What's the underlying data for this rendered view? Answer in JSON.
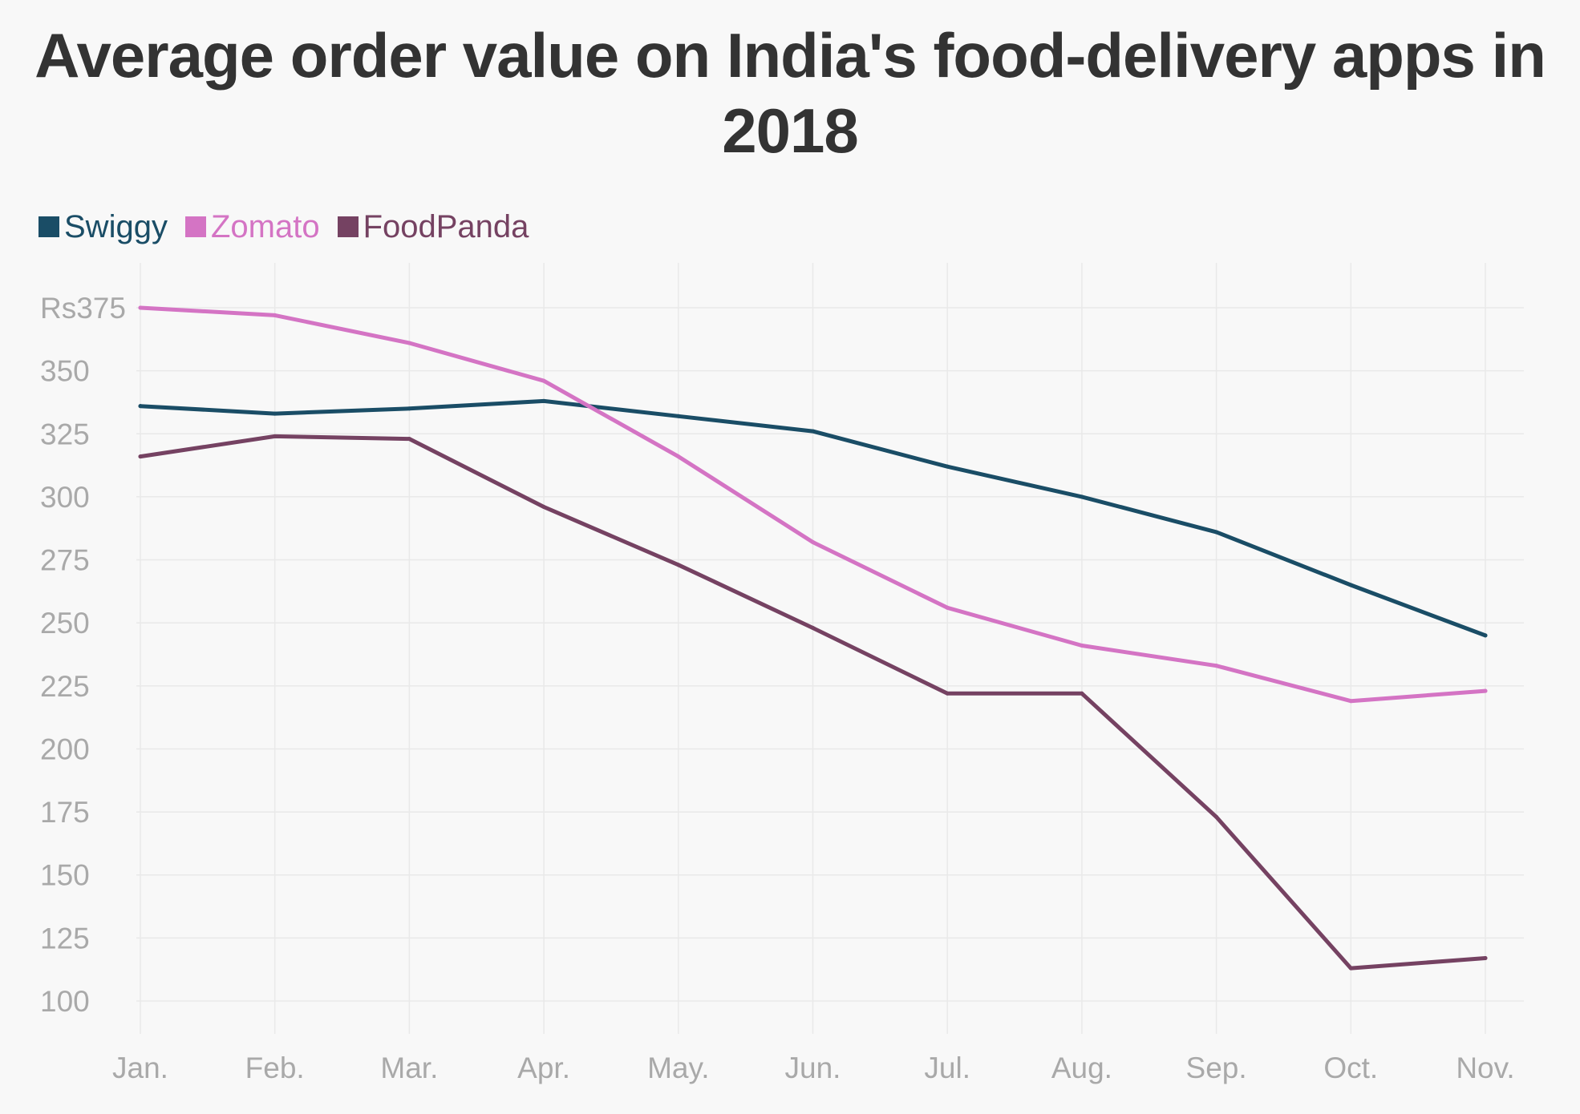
{
  "chart_data": {
    "type": "line",
    "title": "Average order value on India's food-delivery apps in 2018",
    "xlabel": "",
    "ylabel": "",
    "categories": [
      "Jan.",
      "Feb.",
      "Mar.",
      "Apr.",
      "May.",
      "Jun.",
      "Jul.",
      "Aug.",
      "Sep.",
      "Oct.",
      "Nov."
    ],
    "y_ticks": [
      "100",
      "125",
      "150",
      "175",
      "200",
      "225",
      "250",
      "275",
      "300",
      "325",
      "350",
      "Rs375"
    ],
    "ylim": [
      100,
      375
    ],
    "grid": true,
    "legend_position": "top-left",
    "series": [
      {
        "name": "Swiggy",
        "color": "#1a4d66",
        "values": [
          336,
          333,
          335,
          338,
          332,
          326,
          312,
          300,
          286,
          265,
          245
        ]
      },
      {
        "name": "Zomato",
        "color": "#d474c4",
        "values": [
          375,
          372,
          361,
          346,
          316,
          282,
          256,
          241,
          233,
          219,
          223
        ]
      },
      {
        "name": "FoodPanda",
        "color": "#754262",
        "values": [
          316,
          324,
          323,
          296,
          273,
          248,
          222,
          222,
          173,
          113,
          117
        ]
      }
    ]
  }
}
